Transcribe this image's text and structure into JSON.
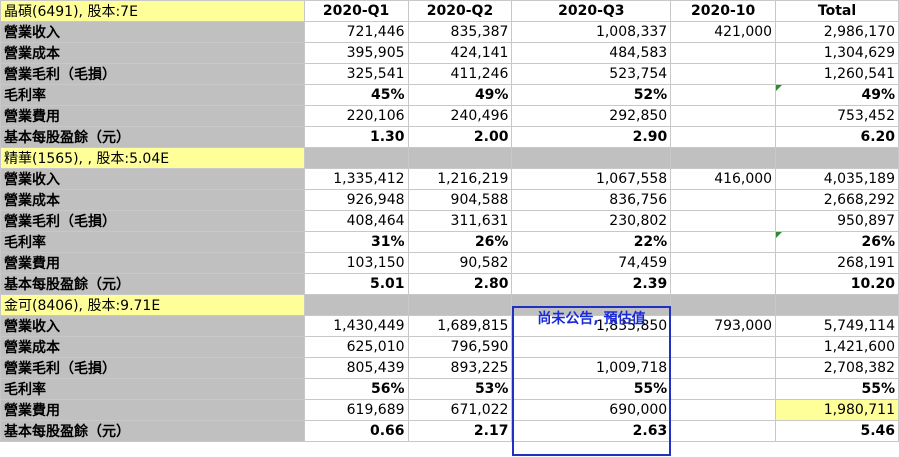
{
  "columns": [
    "2020-Q1",
    "2020-Q2",
    "2020-Q3",
    "2020-10",
    "Total"
  ],
  "estimate_note": "尚未公告, 預估值",
  "sections": [
    {
      "company": "晶碩(6491), 股本:7E",
      "rows": [
        {
          "label": "營業收入",
          "values": [
            "721,446",
            "835,387",
            "1,008,337",
            "421,000",
            "2,986,170"
          ],
          "style": "plain"
        },
        {
          "label": "營業成本",
          "values": [
            "395,905",
            "424,141",
            "484,583",
            "",
            "1,304,629"
          ],
          "style": "plain"
        },
        {
          "label": "營業毛利（毛損）",
          "values": [
            "325,541",
            "411,246",
            "523,754",
            "",
            "1,260,541"
          ],
          "style": "plain"
        },
        {
          "label": "毛利率",
          "values": [
            "45%",
            "49%",
            "52%",
            "",
            "49%"
          ],
          "style": "red"
        },
        {
          "label": "營業費用",
          "values": [
            "220,106",
            "240,496",
            "292,850",
            "",
            "753,452"
          ],
          "style": "plain"
        },
        {
          "label": "基本每股盈餘（元）",
          "values": [
            "1.30",
            "2.00",
            "2.90",
            "",
            "6.20"
          ],
          "style": "red"
        }
      ]
    },
    {
      "company": "精華(1565), , 股本:5.04E",
      "rows": [
        {
          "label": "營業收入",
          "values": [
            "1,335,412",
            "1,216,219",
            "1,067,558",
            "416,000",
            "4,035,189"
          ],
          "style": "plain"
        },
        {
          "label": "營業成本",
          "values": [
            "926,948",
            "904,588",
            "836,756",
            "",
            "2,668,292"
          ],
          "style": "plain"
        },
        {
          "label": "營業毛利（毛損）",
          "values": [
            "408,464",
            "311,631",
            "230,802",
            "",
            "950,897"
          ],
          "style": "plain"
        },
        {
          "label": "毛利率",
          "values": [
            "31%",
            "26%",
            "22%",
            "",
            "26%"
          ],
          "style": "green"
        },
        {
          "label": "營業費用",
          "values": [
            "103,150",
            "90,582",
            "74,459",
            "",
            "268,191"
          ],
          "style": "plain"
        },
        {
          "label": "基本每股盈餘（元）",
          "values": [
            "5.01",
            "2.80",
            "2.39",
            "",
            "10.20"
          ],
          "style": "green_total_red"
        }
      ]
    },
    {
      "company": "金可(8406), 股本:9.71E",
      "rows": [
        {
          "label": "營業收入",
          "values": [
            "1,430,449",
            "1,689,815",
            "1,835,850",
            "793,000",
            "5,749,114"
          ],
          "style": "plain"
        },
        {
          "label": "營業成本",
          "values": [
            "625,010",
            "796,590",
            "",
            "",
            "1,421,600"
          ],
          "style": "plain"
        },
        {
          "label": "營業毛利（毛損）",
          "values": [
            "805,439",
            "893,225",
            "1,009,718",
            "",
            "2,708,382"
          ],
          "style": "plain"
        },
        {
          "label": "毛利率",
          "values": [
            "56%",
            "53%",
            "55%",
            "",
            "55%"
          ],
          "style": "red"
        },
        {
          "label": "營業費用",
          "values": [
            "619,689",
            "671,022",
            "690,000",
            "",
            "1,980,711"
          ],
          "style": "plain"
        },
        {
          "label": " 基本每股盈餘（元）",
          "values": [
            "0.66",
            "2.17",
            "2.63",
            "",
            "5.46"
          ],
          "style": "red"
        }
      ]
    }
  ]
}
